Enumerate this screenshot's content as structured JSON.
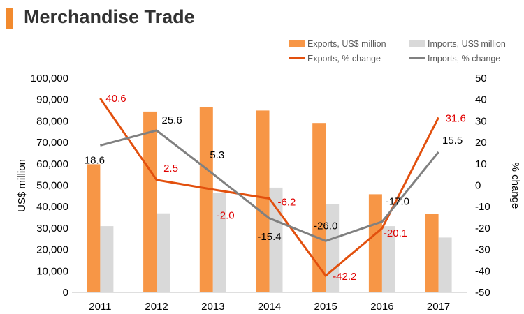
{
  "page": {
    "title": "Merchandise Trade"
  },
  "chart_data": {
    "type": "bar",
    "categories": [
      "2011",
      "2012",
      "2013",
      "2014",
      "2015",
      "2016",
      "2017"
    ],
    "series": [
      {
        "name": "Exports, US$ million",
        "kind": "bar",
        "axis": "left",
        "color": "#F79646",
        "values": [
          59800,
          84400,
          86500,
          84900,
          79100,
          45800,
          36700
        ]
      },
      {
        "name": "Imports, US$ million",
        "kind": "bar",
        "axis": "left",
        "color": "#D9D9D9",
        "values": [
          30900,
          36900,
          46500,
          48900,
          41300,
          30900,
          25600
        ]
      },
      {
        "name": "Exports, % change",
        "kind": "line",
        "axis": "right",
        "color": "#E2500E",
        "values": [
          40.6,
          2.5,
          -2.0,
          -6.2,
          -42.2,
          -20.1,
          31.6
        ],
        "labels": [
          "40.6",
          "2.5",
          "-2.0",
          "-6.2",
          "-42.2",
          "-20.1",
          "31.6"
        ],
        "label_color": "#E00000"
      },
      {
        "name": "Imports, % change",
        "kind": "line",
        "axis": "right",
        "color": "#808080",
        "values": [
          18.6,
          25.6,
          5.3,
          -15.4,
          -26.0,
          -17.0,
          15.5
        ],
        "labels": [
          "18.6",
          "25.6",
          "5.3",
          "-15.4",
          "-26.0",
          "-17.0",
          "15.5"
        ],
        "label_color": "#000000"
      }
    ],
    "y_left": {
      "label": "US$ million",
      "min": 0,
      "max": 100000,
      "ticks": [
        "0",
        "10,000",
        "20,000",
        "30,000",
        "40,000",
        "50,000",
        "60,000",
        "70,000",
        "80,000",
        "90,000",
        "100,000"
      ]
    },
    "y_right": {
      "label": "% change",
      "min": -50,
      "max": 50,
      "ticks": [
        "-50",
        "-40",
        "-30",
        "-20",
        "-10",
        "0",
        "10",
        "20",
        "30",
        "40",
        "50"
      ]
    },
    "grid": false,
    "legend_position": "top-right"
  }
}
